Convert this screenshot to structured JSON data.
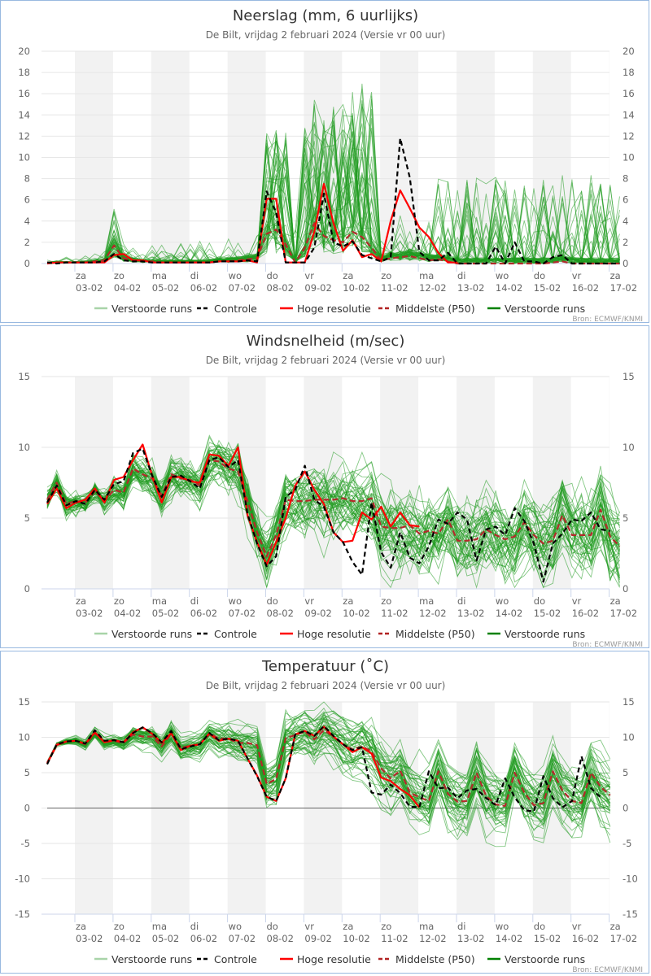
{
  "x_axis": {
    "days": [
      "za",
      "zo",
      "ma",
      "di",
      "wo",
      "do",
      "vr",
      "za",
      "zo",
      "ma",
      "di",
      "wo",
      "do",
      "vr",
      "za"
    ],
    "dates": [
      "03-02",
      "04-02",
      "05-02",
      "06-02",
      "07-02",
      "08-02",
      "09-02",
      "10-02",
      "11-02",
      "12-02",
      "13-02",
      "14-02",
      "15-02",
      "16-02",
      "17-02"
    ]
  },
  "legend": [
    {
      "label": "Verstoorde runs",
      "color": "#a8d4a8",
      "style": "solid"
    },
    {
      "label": "Controle",
      "color": "#000000",
      "style": "dashed"
    },
    {
      "label": "Hoge resolutie",
      "color": "#ff0000",
      "style": "solid"
    },
    {
      "label": "Middelste (P50)",
      "color": "#b22222",
      "style": "dashed"
    },
    {
      "label": "Verstoorde runs",
      "color": "#008000",
      "style": "solid"
    }
  ],
  "source": "Bron: ECMWF/KNMI",
  "chart_data": [
    {
      "type": "line",
      "title": "Neerslag (mm, 6 uurlijks)",
      "subtitle": "De Bilt, vrijdag 2 februari 2024 (Versie vr 00 uur)",
      "ylim": [
        0,
        20
      ],
      "yticks": [
        0,
        2,
        4,
        6,
        8,
        10,
        12,
        14,
        16,
        18,
        20
      ],
      "grid": true,
      "legend_position": "bottom",
      "x_start": "02-02 06h",
      "x_step_hours": 6,
      "series": [
        {
          "name": "Controle",
          "values": [
            0.1,
            0,
            0.1,
            0.1,
            0.1,
            0.1,
            0.2,
            0.9,
            0.3,
            0.2,
            0.2,
            0.1,
            0.1,
            0.1,
            0.1,
            0.1,
            0.1,
            0.1,
            0.2,
            0.2,
            0.2,
            0.3,
            0.2,
            6.8,
            4.8,
            0.1,
            0.1,
            0.1,
            1.5,
            6.6,
            2.0,
            1.6,
            2.1,
            0.8,
            0.5,
            0.2,
            0.6,
            11.8,
            8.1,
            1.1,
            0.3,
            0.3,
            1.0,
            0,
            0,
            0,
            0,
            1.6,
            0,
            2.0,
            0.2,
            0.2,
            0,
            0.6,
            0.8,
            0,
            0,
            0,
            0,
            0,
            0
          ]
        },
        {
          "name": "Hoge resolutie",
          "values": [
            0,
            0.1,
            0.1,
            0.1,
            0.1,
            0.1,
            0.1,
            0.8,
            0.9,
            0.3,
            0.3,
            0.1,
            0.1,
            0.1,
            0.1,
            0.1,
            0.1,
            0.1,
            0.2,
            0.2,
            0.2,
            0.3,
            0.1,
            6.1,
            6.1,
            0.1,
            0.1,
            0.1,
            3.0,
            7.5,
            3.8,
            1.2,
            2.2,
            0.6,
            0.9,
            0.2,
            4.0,
            6.9,
            5.2,
            3.4,
            2.5,
            1.0,
            0.1,
            0.1
          ]
        },
        {
          "name": "Middelste (P50)",
          "values": [
            0.1,
            0.1,
            0.1,
            0.1,
            0.1,
            0.2,
            0.3,
            1.7,
            0.5,
            0.3,
            0.2,
            0.2,
            0.1,
            0.1,
            0.1,
            0.1,
            0.1,
            0.1,
            0.2,
            0.2,
            0.3,
            0.4,
            0.5,
            2.8,
            3.2,
            1.8,
            0.1,
            1.5,
            3.8,
            2.6,
            2.2,
            2.0,
            3.0,
            2.5,
            1.5,
            0.3,
            0.5,
            0.6,
            0.7,
            0.5,
            0.3,
            0.4,
            0.2,
            0,
            0,
            0,
            0,
            0,
            0,
            0,
            0,
            0,
            0,
            0.1,
            0.2,
            0,
            0,
            0,
            0,
            0,
            0
          ]
        }
      ]
    },
    {
      "type": "line",
      "title": "Windsnelheid (m/sec)",
      "subtitle": "De Bilt, vrijdag 2 februari 2024 (Versie vr 00 uur)",
      "ylim": [
        0,
        15
      ],
      "yticks": [
        0,
        5,
        10,
        15
      ],
      "grid": true,
      "legend_position": "bottom",
      "x_start": "02-02 06h",
      "x_step_hours": 6,
      "series": [
        {
          "name": "Controle",
          "values": [
            6.1,
            7.3,
            5.9,
            6.2,
            6.0,
            7.0,
            6.3,
            7.4,
            7.6,
            9.6,
            9.9,
            8.0,
            6.5,
            7.9,
            8.0,
            7.6,
            7.1,
            9.1,
            9.3,
            8.6,
            9.1,
            5.3,
            3.2,
            1.6,
            2.3,
            6.5,
            7.0,
            8.7,
            6.3,
            5.8,
            4.0,
            3.3,
            1.9,
            1.0,
            6.1,
            2.6,
            1.5,
            4.0,
            2.2,
            1.8,
            3.0,
            4.9,
            4.6,
            5.4,
            4.9,
            2.0,
            4.2,
            4.4,
            3.8,
            5.7,
            4.8,
            3.2,
            0.5,
            3.2,
            3.9,
            4.9,
            4.8,
            5.4,
            4.2,
            4.1
          ]
        },
        {
          "name": "Hoge resolutie",
          "values": [
            6.0,
            7.1,
            5.7,
            6.1,
            6.3,
            7.1,
            6.1,
            7.7,
            7.9,
            9.1,
            10.2,
            8.0,
            6.1,
            7.9,
            7.9,
            7.6,
            7.5,
            9.5,
            9.4,
            8.7,
            10.0,
            5.2,
            3.3,
            1.7,
            3.3,
            5.0,
            7.3,
            8.3,
            7.0,
            6.0,
            4.0,
            3.3,
            3.4,
            5.4,
            4.9,
            5.8,
            4.4,
            5.4,
            4.5,
            4.4
          ]
        },
        {
          "name": "Middelste (P50)",
          "values": [
            6.3,
            7.5,
            6.0,
            6.2,
            6.1,
            6.9,
            6.2,
            7.0,
            6.8,
            8.5,
            8.1,
            7.8,
            6.6,
            8.1,
            7.8,
            7.7,
            7.3,
            9.1,
            9.0,
            8.5,
            8.3,
            6.2,
            4.0,
            2.3,
            3.8,
            6.3,
            6.2,
            6.2,
            6.3,
            6.3,
            6.3,
            6.4,
            6.2,
            6.2,
            6.4,
            4.4,
            4.3,
            4.3,
            4.5,
            3.9,
            4.1,
            3.9,
            4.9,
            3.4,
            3.4,
            3.5,
            4.2,
            3.8,
            3.5,
            3.7,
            4.7,
            3.8,
            3.2,
            3.4,
            5.2,
            3.8,
            3.8,
            3.8,
            5.6,
            3.7,
            3.0
          ]
        }
      ]
    },
    {
      "type": "line",
      "title": "Temperatuur (˚C)",
      "subtitle": "De Bilt, vrijdag 2 februari 2024 (Versie vr 00 uur)",
      "ylim": [
        -15,
        15
      ],
      "yticks": [
        -15,
        -10,
        -5,
        0,
        5,
        10,
        15
      ],
      "grid": true,
      "legend_position": "bottom",
      "x_start": "02-02 06h",
      "x_step_hours": 6,
      "series": [
        {
          "name": "Controle",
          "values": [
            6.2,
            9.0,
            9.4,
            9.5,
            9.1,
            11.0,
            9.5,
            9.6,
            9.3,
            10.6,
            11.4,
            10.6,
            9.3,
            10.9,
            8.3,
            8.7,
            9.0,
            10.6,
            9.6,
            9.8,
            9.5,
            7.0,
            4.5,
            1.6,
            1.0,
            4.2,
            10.4,
            10.9,
            10.2,
            11.6,
            10.2,
            9.0,
            8.2,
            8.6,
            2.2,
            1.9,
            3.3,
            2.1,
            0.2,
            0.1,
            5.2,
            2.8,
            2.9,
            1.4,
            2.5,
            2.7,
            1.4,
            0.4,
            4.2,
            1.5,
            -0.3,
            -0.5,
            4.5,
            1.4,
            0.1,
            1.0,
            7.3,
            2.8,
            1.5
          ]
        },
        {
          "name": "Hoge resolutie",
          "values": [
            6.3,
            8.9,
            9.4,
            9.5,
            9.1,
            10.7,
            9.3,
            9.6,
            9.3,
            10.7,
            11.4,
            10.5,
            9.2,
            10.6,
            8.2,
            8.8,
            9.0,
            10.5,
            9.5,
            9.8,
            9.5,
            7.0,
            4.6,
            1.6,
            1.0,
            4.2,
            10.4,
            10.9,
            10.2,
            11.5,
            10.1,
            9.0,
            7.9,
            8.6,
            7.7,
            4.3,
            3.8,
            2.7,
            1.8,
            0.1
          ]
        },
        {
          "name": "Middelste (P50)",
          "values": [
            6.4,
            9.0,
            9.4,
            9.5,
            9.0,
            10.6,
            9.3,
            9.5,
            9.2,
            10.4,
            10.1,
            10.1,
            8.7,
            10.5,
            8.5,
            8.8,
            9.0,
            10.6,
            9.8,
            9.8,
            9.2,
            9.2,
            8.9,
            3.4,
            4.1,
            9.9,
            10.3,
            10.8,
            9.7,
            11.0,
            10.1,
            9.0,
            8.3,
            8.7,
            8.0,
            5.6,
            4.2,
            5.3,
            2.2,
            1.5,
            1.0,
            5.2,
            2.0,
            0.9,
            1.0,
            5.0,
            1.7,
            0.5,
            0.3,
            5.0,
            2.2,
            0.4,
            0.7,
            5.2,
            2.5,
            1.0,
            0.7,
            5.0,
            3.0,
            1.8
          ]
        }
      ]
    }
  ]
}
